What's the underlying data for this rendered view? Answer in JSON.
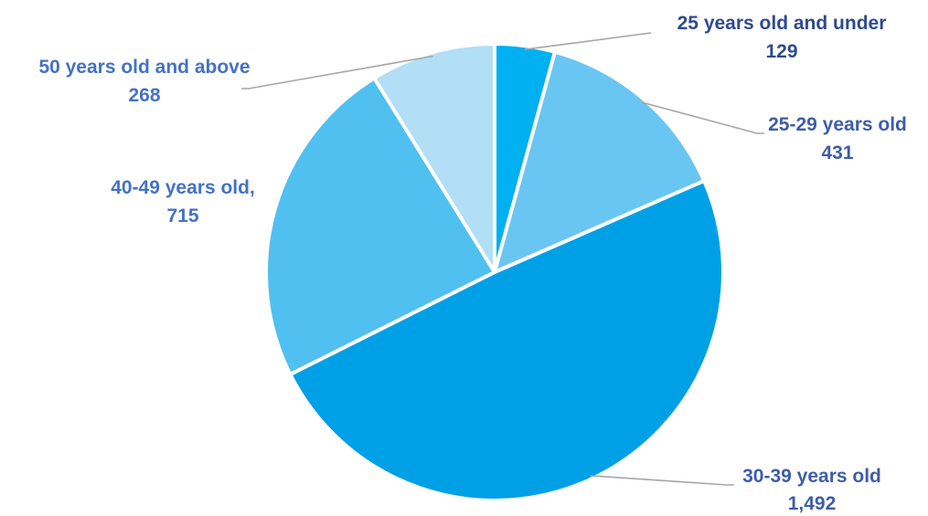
{
  "chart_data": {
    "type": "pie",
    "title": "",
    "start_angle_deg": 0,
    "direction": "clockwise",
    "slices": [
      {
        "label": "25 years old and under",
        "value_label": "129",
        "value": 129,
        "color": "#00b0f0",
        "text_color": "#2e4a8e"
      },
      {
        "label": "25-29 years old",
        "value_label": "431",
        "value": 431,
        "color": "#69c6f2",
        "text_color": "#3d5da8"
      },
      {
        "label": "30-39 years old",
        "value_label": "1,492",
        "value": 1492,
        "color": "#00a0e6",
        "text_color": "#3d5da8"
      },
      {
        "label": "40-49 years old,",
        "value_label": "715",
        "value": 715,
        "color": "#4fc0f0",
        "text_color": "#4472c4"
      },
      {
        "label": "50 years old and above",
        "value_label": "268",
        "value": 268,
        "color": "#b2def6",
        "text_color": "#4472c4"
      }
    ],
    "legend": "none",
    "data_labels": "outside with leader lines"
  }
}
